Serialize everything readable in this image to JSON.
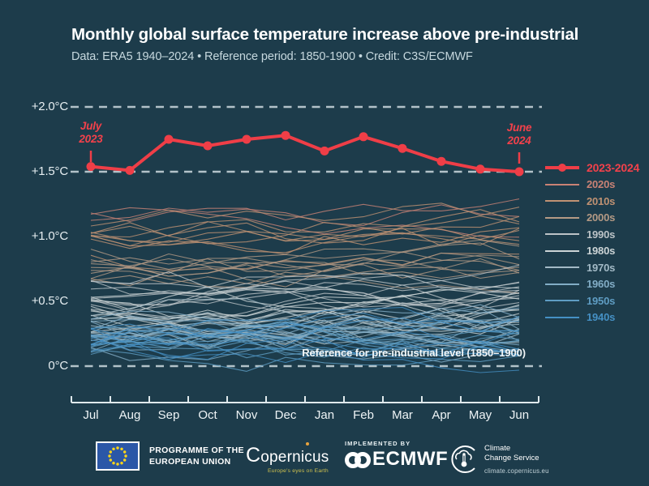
{
  "page": {
    "background": "#1d3c4b",
    "accent_red": "#ef3e47",
    "grid_color": "#b3c2c9",
    "axis_color": "#dfe9ec"
  },
  "header": {
    "title": "Monthly global surface temperature increase above pre-industrial",
    "subtitle": "Data: ERA5 1940–2024 • Reference period: 1850-1900 • Credit: C3S/ECMWF"
  },
  "chart_data": {
    "type": "line",
    "title": "Monthly global surface temperature increase above pre-industrial",
    "x_categories": [
      "Jul",
      "Aug",
      "Sep",
      "Oct",
      "Nov",
      "Dec",
      "Jan",
      "Feb",
      "Mar",
      "Apr",
      "May",
      "Jun"
    ],
    "y_ticks": [
      {
        "label": "+2.0°C",
        "value": 2.0
      },
      {
        "label": "+1.5°C",
        "value": 1.5
      },
      {
        "label": "+1.0°C",
        "value": 1.0
      },
      {
        "label": "+0.5°C",
        "value": 0.5
      },
      {
        "label": "0°C",
        "value": 0.0
      }
    ],
    "ylim": [
      -0.35,
      2.1
    ],
    "gridlines_at": [
      2.0,
      1.5,
      0.0
    ],
    "legend_position": "right",
    "highlight_series": {
      "name": "2023-2024",
      "color": "#ef3e47",
      "label_color": "#f2414b",
      "values": [
        1.54,
        1.51,
        1.75,
        1.7,
        1.75,
        1.78,
        1.66,
        1.77,
        1.68,
        1.58,
        1.52,
        1.5
      ]
    },
    "decade_series": [
      {
        "name": "2020s",
        "color": "#c98275",
        "years": 3,
        "base": 1.18,
        "year_spread": 0.1,
        "month_noise": 0.14,
        "trend": 0.08,
        "max": 1.44
      },
      {
        "name": "2010s",
        "color": "#c09273",
        "years": 10,
        "base": 0.97,
        "year_spread": 0.13,
        "month_noise": 0.15,
        "trend": 0.15,
        "max": 1.4
      },
      {
        "name": "2000s",
        "color": "#b49a85",
        "years": 10,
        "base": 0.78,
        "year_spread": 0.1,
        "month_noise": 0.14,
        "trend": 0.08,
        "max": 1.3
      },
      {
        "name": "1990s",
        "color": "#bcc3c7",
        "years": 10,
        "base": 0.6,
        "year_spread": 0.12,
        "month_noise": 0.15,
        "trend": 0.1,
        "max": 1.1
      },
      {
        "name": "1980s",
        "color": "#ccd4d6",
        "years": 10,
        "base": 0.44,
        "year_spread": 0.11,
        "month_noise": 0.15,
        "trend": 0.1,
        "max": 0.95
      },
      {
        "name": "1970s",
        "color": "#a3bac6",
        "years": 10,
        "base": 0.26,
        "year_spread": 0.11,
        "month_noise": 0.16,
        "trend": 0.06,
        "max": 0.75
      },
      {
        "name": "1960s",
        "color": "#82adc6",
        "years": 10,
        "base": 0.22,
        "year_spread": 0.1,
        "month_noise": 0.16,
        "trend": 0.0,
        "max": 0.7
      },
      {
        "name": "1950s",
        "color": "#5f9dc3",
        "years": 10,
        "base": 0.16,
        "year_spread": 0.1,
        "month_noise": 0.16,
        "trend": 0.0,
        "max": 0.65
      },
      {
        "name": "1940s",
        "color": "#4590c4",
        "years": 10,
        "base": 0.22,
        "year_spread": 0.12,
        "month_noise": 0.17,
        "trend": -0.05,
        "max": 0.7
      }
    ],
    "annotations": {
      "start_label": {
        "line1": "July",
        "line2": "2023"
      },
      "end_label": {
        "line1": "June",
        "line2": "2024"
      },
      "reference_line_label": "Reference for pre-industrial level (1850–1900)"
    }
  },
  "footer": {
    "eu": {
      "label_line1": "PROGRAMME OF THE",
      "label_line2": "EUROPEAN UNION",
      "flag_blue": "#2b57a7",
      "star_yellow": "#ffd617"
    },
    "copernicus": {
      "name": "Copernicus",
      "tagline": "Europe's eyes on Earth"
    },
    "ecmwf": {
      "implemented_by": "IMPLEMENTED BY",
      "name": "ECMWF"
    },
    "climate_service": {
      "line1": "Climate",
      "line2": "Change Service",
      "url": "climate.copernicus.eu"
    }
  }
}
